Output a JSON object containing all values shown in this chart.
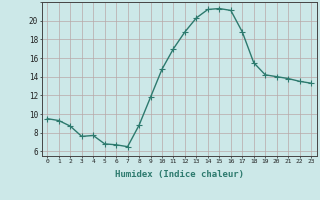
{
  "x": [
    0,
    1,
    2,
    3,
    4,
    5,
    6,
    7,
    8,
    9,
    10,
    11,
    12,
    13,
    14,
    15,
    16,
    17,
    18,
    19,
    20,
    21,
    22,
    23
  ],
  "y": [
    9.5,
    9.3,
    8.7,
    7.6,
    7.7,
    6.8,
    6.7,
    6.5,
    8.8,
    11.8,
    14.8,
    17.0,
    18.8,
    20.3,
    21.2,
    21.3,
    21.1,
    18.8,
    15.5,
    14.2,
    14.0,
    13.8,
    13.5,
    13.3
  ],
  "line_color": "#2d7a6e",
  "marker": "+",
  "marker_size": 4,
  "background_color": "#cce8e8",
  "grid_color_major": "#b8a8a8",
  "grid_color_minor": "#ddd0d0",
  "xlabel": "Humidex (Indice chaleur)",
  "ylabel": "",
  "xlim": [
    -0.5,
    23.5
  ],
  "ylim": [
    5.5,
    22
  ],
  "yticks": [
    6,
    8,
    10,
    12,
    14,
    16,
    18,
    20
  ],
  "xticks": [
    0,
    1,
    2,
    3,
    4,
    5,
    6,
    7,
    8,
    9,
    10,
    11,
    12,
    13,
    14,
    15,
    16,
    17,
    18,
    19,
    20,
    21,
    22,
    23
  ],
  "title": "",
  "line_width": 1.0
}
